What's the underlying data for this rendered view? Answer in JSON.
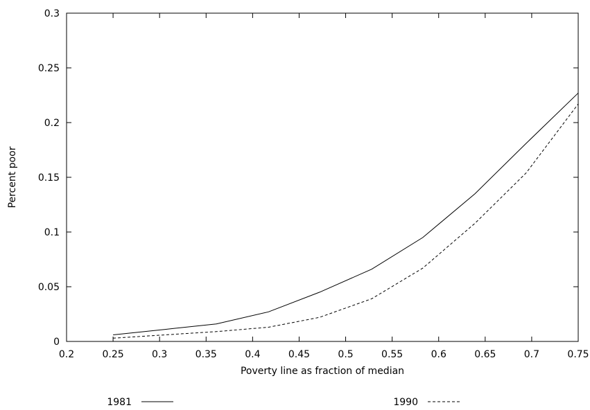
{
  "chart_data": {
    "type": "line",
    "xlabel": "Poverty line as fraction of median",
    "ylabel": "Percent poor",
    "xlim": [
      0.2,
      0.75
    ],
    "ylim": [
      0,
      0.3
    ],
    "x_ticks": [
      "0.2",
      "0.25",
      "0.3",
      "0.35",
      "0.4",
      "0.45",
      "0.5",
      "0.55",
      "0.6",
      "0.65",
      "0.7",
      "0.75"
    ],
    "y_ticks": [
      "0",
      "0.05",
      "0.1",
      "0.15",
      "0.2",
      "0.25",
      "0.3"
    ],
    "grid": false,
    "legend_position": "bottom",
    "series": [
      {
        "name": "1981",
        "style": "solid",
        "color": "#000000",
        "x": [
          0.25,
          0.306,
          0.361,
          0.417,
          0.472,
          0.528,
          0.583,
          0.639,
          0.694,
          0.75
        ],
        "y": [
          0.006,
          0.011,
          0.016,
          0.027,
          0.045,
          0.066,
          0.095,
          0.135,
          0.181,
          0.227
        ]
      },
      {
        "name": "1990",
        "style": "dashed",
        "color": "#000000",
        "x": [
          0.25,
          0.306,
          0.361,
          0.417,
          0.472,
          0.528,
          0.583,
          0.639,
          0.694,
          0.75
        ],
        "y": [
          0.003,
          0.006,
          0.009,
          0.013,
          0.022,
          0.039,
          0.067,
          0.108,
          0.154,
          0.217
        ]
      }
    ]
  }
}
